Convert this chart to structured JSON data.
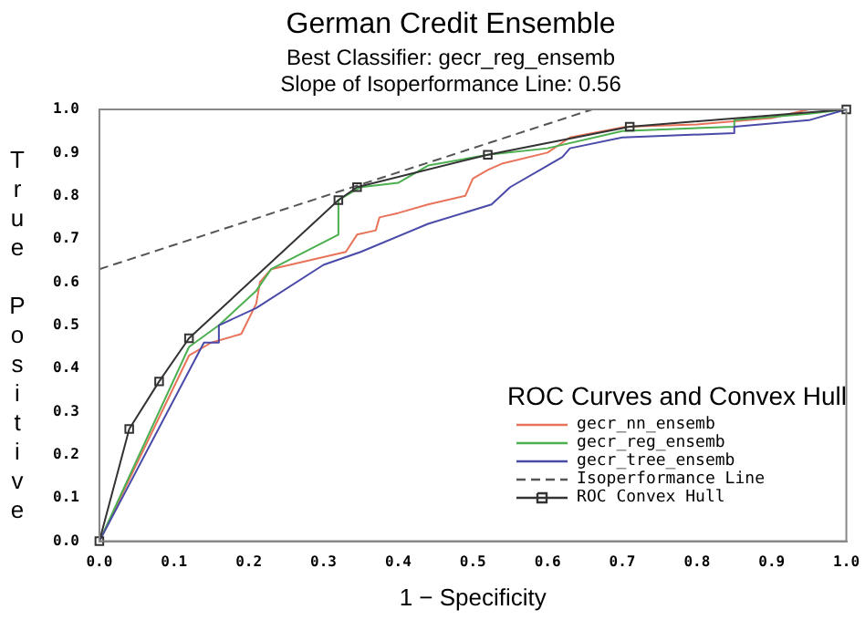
{
  "chart_data": {
    "type": "line",
    "title": "German Credit Ensemble",
    "subtitle": "Best Classifier: gecr_reg_ensemb",
    "annotations": [
      "Slope of Isoperformance Line: 0.56"
    ],
    "xlabel": "1 − Specificity",
    "ylabel": "True Positive",
    "legend_title": "ROC Curves and Convex Hull",
    "legend": "bottom right",
    "grid": false,
    "xlim": [
      0,
      1
    ],
    "ylim": [
      0,
      1
    ],
    "xticks": [
      {
        "value": 0,
        "label": "0.0"
      },
      {
        "value": 0.1,
        "label": "0.1"
      },
      {
        "value": 0.2,
        "label": "0.2"
      },
      {
        "value": 0.3,
        "label": "0.3"
      },
      {
        "value": 0.4,
        "label": "0.4"
      },
      {
        "value": 0.5,
        "label": "0.5"
      },
      {
        "value": 0.6,
        "label": "0.6"
      },
      {
        "value": 0.7,
        "label": "0.7"
      },
      {
        "value": 0.8,
        "label": "0.8"
      },
      {
        "value": 0.9,
        "label": "0.9"
      },
      {
        "value": 1,
        "label": "1.0"
      }
    ],
    "yticks": [
      {
        "value": 0,
        "label": "0.0"
      },
      {
        "value": 0.1,
        "label": "0.1"
      },
      {
        "value": 0.2,
        "label": "0.2"
      },
      {
        "value": 0.3,
        "label": "0.3"
      },
      {
        "value": 0.4,
        "label": "0.4"
      },
      {
        "value": 0.5,
        "label": "0.5"
      },
      {
        "value": 0.6,
        "label": "0.6"
      },
      {
        "value": 0.7,
        "label": "0.7"
      },
      {
        "value": 0.8,
        "label": "0.8"
      },
      {
        "value": 0.9,
        "label": "0.9"
      },
      {
        "value": 1,
        "label": "1.0"
      }
    ],
    "series": [
      {
        "name": "gecr_nn_ensemb",
        "color": "#e8735a",
        "marker": "none",
        "line_style": "solid",
        "x": [
          0,
          0.12,
          0.15,
          0.19,
          0.21,
          0.215,
          0.23,
          0.28,
          0.33,
          0.345,
          0.37,
          0.375,
          0.4,
          0.44,
          0.49,
          0.5,
          0.52,
          0.54,
          0.6,
          0.63,
          0.705,
          0.8,
          0.9,
          0.95
        ],
        "values": [
          0,
          0.43,
          0.46,
          0.48,
          0.55,
          0.6,
          0.63,
          0.65,
          0.67,
          0.71,
          0.72,
          0.75,
          0.76,
          0.78,
          0.8,
          0.84,
          0.86,
          0.875,
          0.9,
          0.935,
          0.96,
          0.965,
          0.98,
          1
        ]
      },
      {
        "name": "gecr_reg_ensemb",
        "color": "#4caf50",
        "marker": "none",
        "line_style": "solid",
        "x": [
          0,
          0.12,
          0.16,
          0.21,
          0.23,
          0.32,
          0.32,
          0.35,
          0.4,
          0.44,
          0.52,
          0.6,
          0.7,
          0.85,
          0.85,
          0.95,
          1
        ],
        "values": [
          0,
          0.45,
          0.5,
          0.58,
          0.63,
          0.71,
          0.79,
          0.82,
          0.83,
          0.87,
          0.895,
          0.91,
          0.95,
          0.96,
          0.975,
          0.99,
          1
        ]
      },
      {
        "name": "gecr_tree_ensemb",
        "color": "#4a4aa8",
        "marker": "none",
        "line_style": "solid",
        "x": [
          0,
          0.14,
          0.16,
          0.16,
          0.21,
          0.3,
          0.35,
          0.44,
          0.525,
          0.55,
          0.6,
          0.62,
          0.63,
          0.7,
          0.85,
          0.85,
          0.95,
          1
        ],
        "values": [
          0,
          0.46,
          0.46,
          0.5,
          0.54,
          0.64,
          0.67,
          0.735,
          0.78,
          0.82,
          0.87,
          0.89,
          0.91,
          0.935,
          0.945,
          0.96,
          0.975,
          1
        ]
      },
      {
        "name": "Isoperformance Line",
        "color": "#555555",
        "marker": "none",
        "line_style": "dashed",
        "x": [
          0,
          0.66
        ],
        "values": [
          0.63,
          1
        ]
      },
      {
        "name": "ROC Convex Hull",
        "color": "#333333",
        "marker": "square",
        "line_style": "solid",
        "x": [
          0,
          0.04,
          0.08,
          0.12,
          0.32,
          0.345,
          0.52,
          0.71,
          1
        ],
        "values": [
          0,
          0.26,
          0.37,
          0.47,
          0.79,
          0.82,
          0.895,
          0.96,
          1
        ]
      }
    ]
  }
}
